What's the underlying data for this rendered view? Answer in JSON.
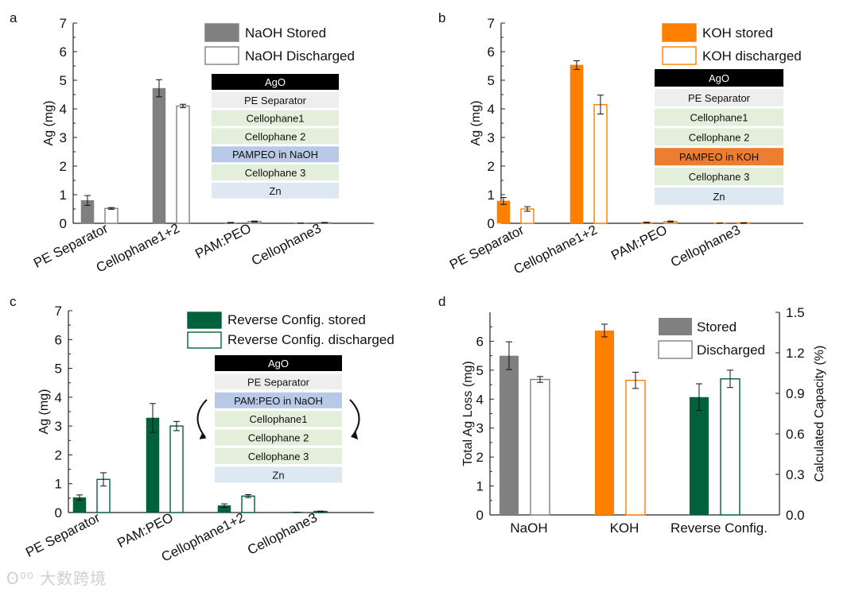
{
  "chart_data": [
    {
      "panel": "a",
      "type": "bar",
      "categories": [
        "PE Separator",
        "Cellophane1+2",
        "PAM:PEO",
        "Cellophane3"
      ],
      "ylabel": "Ag (mg)",
      "ylim": [
        0,
        7
      ],
      "yticks": [
        "0",
        "1",
        "2",
        "3",
        "4",
        "5",
        "6",
        "7"
      ],
      "series": [
        {
          "name": "NaOH Stored",
          "values": [
            0.8,
            4.72,
            0.02,
            0.0
          ],
          "errors": [
            0.17,
            0.3,
            0.01,
            0.01
          ],
          "filled": true
        },
        {
          "name": "NaOH Discharged",
          "values": [
            0.52,
            4.1,
            0.06,
            0.02
          ],
          "errors": [
            0.03,
            0.06,
            0.02,
            0.01
          ],
          "filled": false
        }
      ],
      "color": "#808080",
      "stack": [
        {
          "label": "AgO",
          "color": "#000000",
          "text_color": "#ffffff"
        },
        {
          "label": "PE Separator",
          "color": "#eeeeee",
          "text_color": "#111111"
        },
        {
          "label": "Cellophane1",
          "color": "#e3efda",
          "text_color": "#111111"
        },
        {
          "label": "Cellophane 2",
          "color": "#e3efda",
          "text_color": "#111111"
        },
        {
          "label": "PAMPEO in NaOH",
          "color": "#b8c9e8",
          "text_color": "#111111"
        },
        {
          "label": "Cellophane 3",
          "color": "#e3efda",
          "text_color": "#111111"
        },
        {
          "label": "Zn",
          "color": "#dde8f3",
          "text_color": "#111111"
        }
      ]
    },
    {
      "panel": "b",
      "type": "bar",
      "categories": [
        "PE Separator",
        "Cellophane1+2",
        "PAM:PEO",
        "Cellophane3"
      ],
      "ylabel": "Ag (mg)",
      "ylim": [
        0,
        7
      ],
      "yticks": [
        "0",
        "1",
        "2",
        "3",
        "4",
        "5",
        "6",
        "7"
      ],
      "series": [
        {
          "name": "KOH stored",
          "values": [
            0.78,
            5.53,
            0.03,
            0.0
          ],
          "errors": [
            0.12,
            0.15,
            0.01,
            0.01
          ],
          "filled": true
        },
        {
          "name": "KOH discharged",
          "values": [
            0.5,
            4.15,
            0.06,
            0.01
          ],
          "errors": [
            0.08,
            0.33,
            0.02,
            0.01
          ],
          "filled": false
        }
      ],
      "color": "#ff8000",
      "stack": [
        {
          "label": "AgO",
          "color": "#000000",
          "text_color": "#ffffff"
        },
        {
          "label": "PE Separator",
          "color": "#eeeeee",
          "text_color": "#111111"
        },
        {
          "label": "Cellophane1",
          "color": "#e3efda",
          "text_color": "#111111"
        },
        {
          "label": "Cellophane 2",
          "color": "#e3efda",
          "text_color": "#111111"
        },
        {
          "label": "PAMPEO in KOH",
          "color": "#ed7d31",
          "text_color": "#111111"
        },
        {
          "label": "Cellophane 3",
          "color": "#e3efda",
          "text_color": "#111111"
        },
        {
          "label": "Zn",
          "color": "#dde8f3",
          "text_color": "#111111"
        }
      ]
    },
    {
      "panel": "c",
      "type": "bar",
      "categories": [
        "PE Separator",
        "PAM:PEO",
        "Cellophane1+2",
        "Cellophane3"
      ],
      "ylabel": "Ag (mg)",
      "ylim": [
        0,
        7
      ],
      "yticks": [
        "0",
        "1",
        "2",
        "3",
        "4",
        "5",
        "6",
        "7"
      ],
      "series": [
        {
          "name": "Reverse Config. stored",
          "values": [
            0.52,
            3.28,
            0.24,
            0.0
          ],
          "errors": [
            0.09,
            0.5,
            0.06,
            0.01
          ],
          "filled": true
        },
        {
          "name": "Reverse Config. discharged",
          "values": [
            1.15,
            3.0,
            0.57,
            0.04
          ],
          "errors": [
            0.23,
            0.16,
            0.05,
            0.01
          ],
          "filled": false
        }
      ],
      "color": "#00613a",
      "stack": [
        {
          "label": "AgO",
          "color": "#000000",
          "text_color": "#ffffff"
        },
        {
          "label": "PE Separator",
          "color": "#eeeeee",
          "text_color": "#111111"
        },
        {
          "label": "PAM:PEO in NaOH",
          "color": "#b8c9e8",
          "text_color": "#111111"
        },
        {
          "label": "Cellophane1",
          "color": "#e3efda",
          "text_color": "#111111"
        },
        {
          "label": "Cellophane 2",
          "color": "#e3efda",
          "text_color": "#111111"
        },
        {
          "label": "Cellophane 3",
          "color": "#e3efda",
          "text_color": "#111111"
        },
        {
          "label": "Zn",
          "color": "#dde8f3",
          "text_color": "#111111"
        }
      ]
    },
    {
      "panel": "d",
      "type": "bar",
      "categories": [
        "NaOH",
        "KOH",
        "Reverse Config."
      ],
      "ylabel": "Total Ag Loss (mg)",
      "ylim": [
        0,
        7
      ],
      "yticks": [
        "0",
        "1",
        "2",
        "3",
        "4",
        "5",
        "6"
      ],
      "ylabel_right": "Calculated Capacity (%)",
      "ylim_right": [
        0,
        1.5
      ],
      "yticks_right": [
        "0.0",
        "0.3",
        "0.6",
        "0.9",
        "1.2",
        "1.5"
      ],
      "legend": [
        "Stored",
        "Discharged"
      ],
      "groups": [
        {
          "category": "NaOH",
          "color": "#808080",
          "stored": 5.5,
          "stored_err": 0.48,
          "discharged": 4.68,
          "discharged_err": 0.1
        },
        {
          "category": "KOH",
          "color": "#ff8000",
          "stored": 6.37,
          "stored_err": 0.22,
          "discharged": 4.65,
          "discharged_err": 0.28
        },
        {
          "category": "Reverse Config.",
          "color": "#00613a",
          "stored": 4.07,
          "stored_err": 0.46,
          "discharged": 4.7,
          "discharged_err": 0.3
        }
      ]
    }
  ],
  "watermark": "大数跨境"
}
